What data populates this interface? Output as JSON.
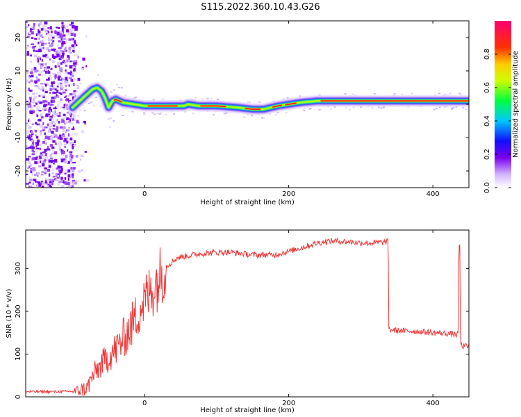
{
  "figure_title": "S115.2022.360.10.43.G26",
  "colors": {
    "snr_line": "#f03535",
    "axis": "#000000",
    "background": "#ffffff"
  },
  "chart_data": [
    {
      "type": "heatmap",
      "title": "",
      "xlabel": "Height of straight line (km)",
      "ylabel": "Frequency (Hz)",
      "xlim": [
        -165,
        450
      ],
      "ylim": [
        -25,
        25
      ],
      "xticks": [
        0,
        200,
        400
      ],
      "yticks": [
        -20,
        -10,
        0,
        10,
        20
      ],
      "grid": false,
      "colorbar": {
        "label": "Normalized spectral amplitude",
        "range": [
          0,
          1
        ],
        "ticks": [
          0.0,
          0.2,
          0.4,
          0.6,
          0.8
        ],
        "colormap": "rainbow (white-violet-blue-cyan-green-yellow-red-magenta)"
      },
      "ridge": {
        "description": "dominant frequency track",
        "x": [
          -100,
          -90,
          -80,
          -72,
          -66,
          -60,
          -55,
          -50,
          -45,
          -40,
          -30,
          -15,
          0,
          30,
          55,
          60,
          75,
          100,
          130,
          150,
          165,
          185,
          200,
          215,
          240,
          300,
          350,
          400,
          450
        ],
        "y": [
          -1,
          1,
          3,
          4.5,
          5,
          4,
          2,
          -1,
          1,
          1.5,
          0.5,
          0,
          -0.5,
          -0.5,
          -0.5,
          0,
          -0.5,
          -0.5,
          -1,
          -1.5,
          -1.5,
          -0.5,
          0,
          0.5,
          1,
          1,
          1,
          1,
          1
        ]
      }
    },
    {
      "type": "line",
      "title": "",
      "xlabel": "Height of straight line (km)",
      "ylabel": "SNR (10 * v/v)",
      "xlim": [
        -165,
        450
      ],
      "ylim": [
        0,
        390
      ],
      "xticks": [
        0,
        200,
        400
      ],
      "yticks": [
        0,
        100,
        200,
        300
      ],
      "grid": false,
      "series": [
        {
          "x": [
            -165,
            -120,
            -95,
            -80,
            -70,
            -60,
            -50,
            -40,
            -30,
            -20,
            -10,
            0,
            10,
            20,
            30,
            45,
            60,
            80,
            100,
            120,
            150,
            180,
            200,
            220,
            240,
            260,
            280,
            300,
            320,
            338,
            339,
            350,
            380,
            400,
            420,
            435,
            436,
            437,
            438,
            440,
            450
          ],
          "y": [
            12,
            12,
            13,
            20,
            55,
            75,
            95,
            110,
            135,
            160,
            195,
            225,
            250,
            280,
            305,
            325,
            330,
            335,
            338,
            338,
            332,
            332,
            340,
            350,
            360,
            365,
            363,
            360,
            360,
            363,
            158,
            155,
            153,
            150,
            148,
            145,
            350,
            140,
            135,
            118,
            118
          ]
        }
      ]
    }
  ]
}
